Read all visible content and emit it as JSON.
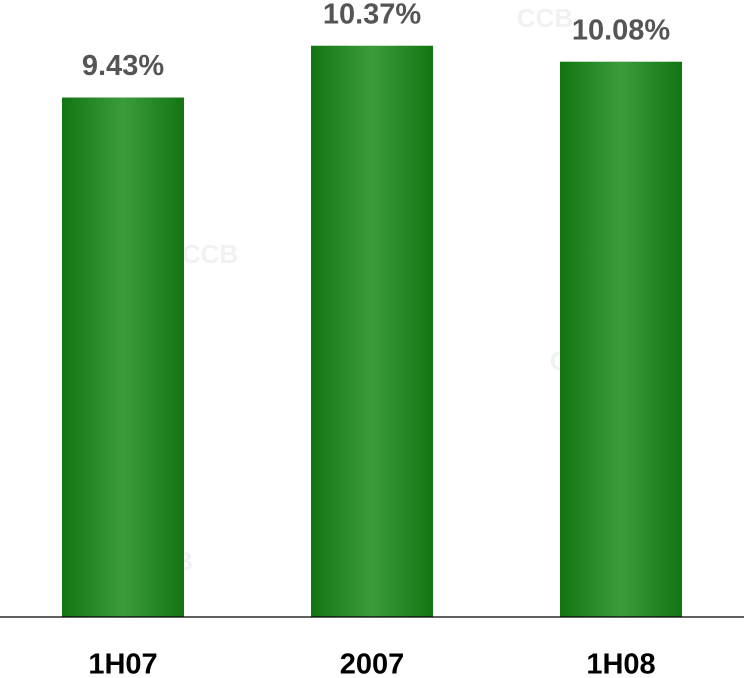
{
  "chart_data": {
    "type": "bar",
    "categories": [
      "1H07",
      "2007",
      "1H08"
    ],
    "values": [
      9.43,
      10.37,
      10.08
    ],
    "value_labels": [
      "9.43%",
      "10.37%",
      "10.08%"
    ],
    "color": "#3c9c3c",
    "ylim": [
      0,
      11.2
    ],
    "watermark": "CCB"
  }
}
